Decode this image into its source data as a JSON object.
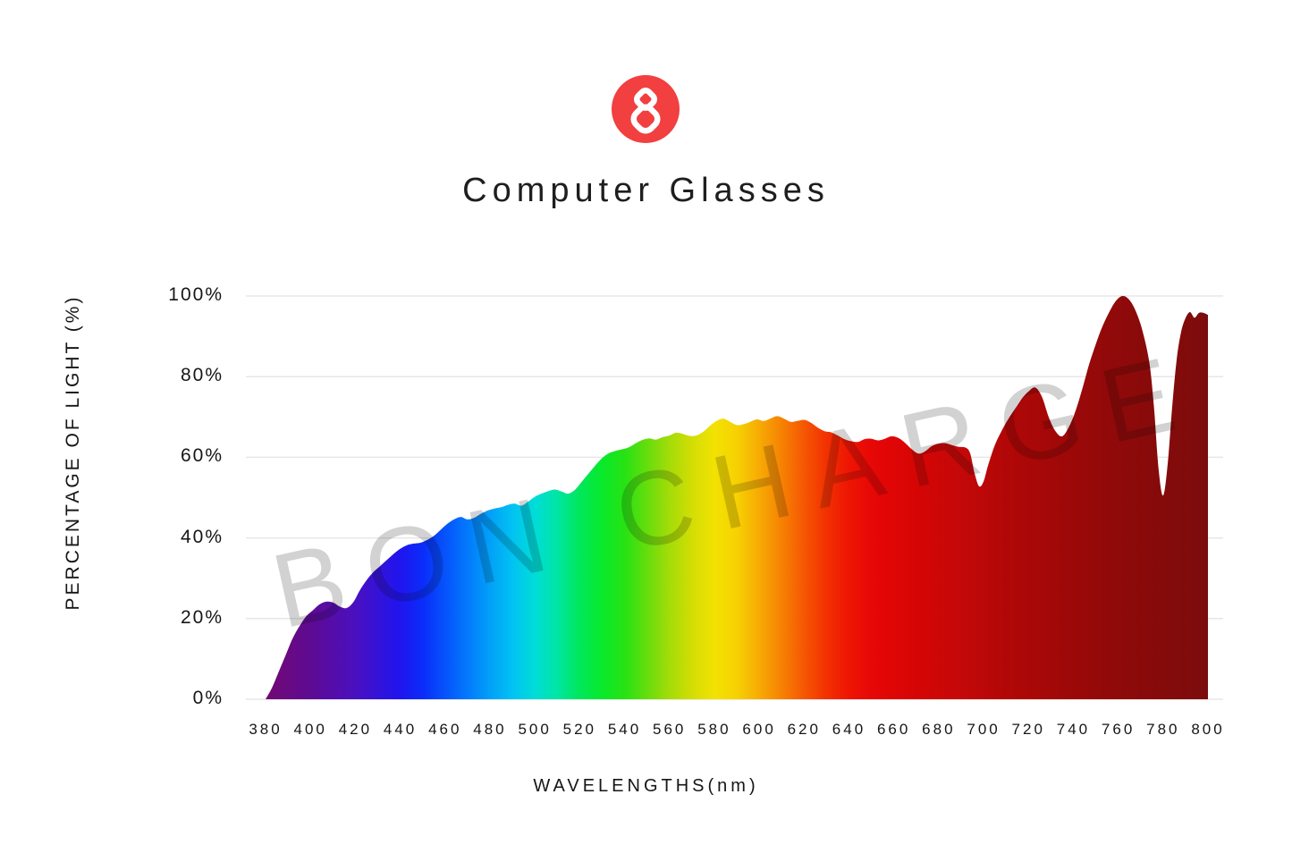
{
  "header": {
    "logo": {
      "bg_color": "#f23f3f",
      "glyph": "bon-charge-figure-8-knot",
      "glyph_color": "#ffffff"
    },
    "title": "Computer Glasses"
  },
  "chart_data": {
    "type": "area",
    "title": "Computer Glasses",
    "xlabel": "WAVELENGTHS(nm)",
    "ylabel": "PERCENTAGE OF LIGHT (%)",
    "watermark": "BON CHARGE",
    "xlim": [
      380,
      800
    ],
    "ylim": [
      0,
      100
    ],
    "grid": "horizontal",
    "grid_color": "#e7e7e7",
    "text_color": "#161616",
    "x_ticks": [
      380,
      400,
      420,
      440,
      460,
      480,
      500,
      520,
      540,
      560,
      580,
      600,
      620,
      640,
      660,
      680,
      700,
      720,
      740,
      760,
      780,
      800
    ],
    "y_ticks": [
      {
        "value": 0,
        "label": "0%"
      },
      {
        "value": 20,
        "label": "20%"
      },
      {
        "value": 40,
        "label": "40%"
      },
      {
        "value": 60,
        "label": "60%"
      },
      {
        "value": 80,
        "label": "80%"
      },
      {
        "value": 100,
        "label": "100%"
      }
    ],
    "series": [
      {
        "name": "computer-glasses-light-transmission-percent",
        "points": [
          [
            380,
            0
          ],
          [
            383,
            3
          ],
          [
            386,
            7
          ],
          [
            389,
            11
          ],
          [
            392,
            15
          ],
          [
            395,
            18
          ],
          [
            398,
            20.5
          ],
          [
            401,
            22
          ],
          [
            404,
            23.5
          ],
          [
            407,
            24.2
          ],
          [
            410,
            24
          ],
          [
            413,
            23
          ],
          [
            416,
            22.6
          ],
          [
            419,
            24
          ],
          [
            422,
            27
          ],
          [
            425,
            29.5
          ],
          [
            428,
            31.5
          ],
          [
            431,
            33
          ],
          [
            434,
            34.5
          ],
          [
            437,
            36
          ],
          [
            440,
            37.3
          ],
          [
            443,
            38.2
          ],
          [
            446,
            38.6
          ],
          [
            449,
            38.8
          ],
          [
            452,
            39.5
          ],
          [
            455,
            40.5
          ],
          [
            458,
            42
          ],
          [
            461,
            43.5
          ],
          [
            464,
            44.6
          ],
          [
            467,
            45.2
          ],
          [
            470,
            44.6
          ],
          [
            473,
            45
          ],
          [
            476,
            46
          ],
          [
            479,
            46.8
          ],
          [
            482,
            47.3
          ],
          [
            485,
            47.6
          ],
          [
            488,
            48.2
          ],
          [
            491,
            48.5
          ],
          [
            494,
            48
          ],
          [
            497,
            49
          ],
          [
            500,
            50.2
          ],
          [
            503,
            51
          ],
          [
            506,
            51.6
          ],
          [
            509,
            52
          ],
          [
            512,
            51.5
          ],
          [
            515,
            51
          ],
          [
            518,
            52
          ],
          [
            521,
            54
          ],
          [
            524,
            56
          ],
          [
            527,
            58
          ],
          [
            530,
            59.8
          ],
          [
            533,
            61
          ],
          [
            536,
            61.6
          ],
          [
            539,
            62
          ],
          [
            542,
            62.5
          ],
          [
            545,
            63.5
          ],
          [
            548,
            64.3
          ],
          [
            551,
            64.7
          ],
          [
            554,
            64.4
          ],
          [
            557,
            65
          ],
          [
            560,
            65.4
          ],
          [
            563,
            66.1
          ],
          [
            566,
            65.8
          ],
          [
            569,
            65.3
          ],
          [
            572,
            65.4
          ],
          [
            575,
            66.3
          ],
          [
            578,
            67.8
          ],
          [
            581,
            69
          ],
          [
            584,
            69.6
          ],
          [
            587,
            68.8
          ],
          [
            590,
            68
          ],
          [
            593,
            68.2
          ],
          [
            596,
            68.8
          ],
          [
            599,
            69.4
          ],
          [
            602,
            69
          ],
          [
            605,
            69.6
          ],
          [
            608,
            70.2
          ],
          [
            611,
            69.6
          ],
          [
            614,
            68.8
          ],
          [
            617,
            69
          ],
          [
            620,
            69.3
          ],
          [
            623,
            68.6
          ],
          [
            626,
            67.4
          ],
          [
            629,
            66.5
          ],
          [
            632,
            66.2
          ],
          [
            635,
            65.4
          ],
          [
            638,
            64.5
          ],
          [
            641,
            64
          ],
          [
            644,
            63.8
          ],
          [
            647,
            64.5
          ],
          [
            650,
            64.6
          ],
          [
            653,
            64.2
          ],
          [
            656,
            64.6
          ],
          [
            659,
            65.2
          ],
          [
            662,
            64.8
          ],
          [
            665,
            63.6
          ],
          [
            668,
            62
          ],
          [
            671,
            60.9
          ],
          [
            674,
            61.5
          ],
          [
            677,
            62.8
          ],
          [
            680,
            63.4
          ],
          [
            683,
            63.5
          ],
          [
            686,
            63
          ],
          [
            689,
            62.6
          ],
          [
            692,
            62.4
          ],
          [
            694,
            61
          ],
          [
            696,
            56
          ],
          [
            698,
            52.8
          ],
          [
            700,
            54
          ],
          [
            702,
            58
          ],
          [
            705,
            63
          ],
          [
            708,
            66.5
          ],
          [
            711,
            69.5
          ],
          [
            714,
            72
          ],
          [
            717,
            74.5
          ],
          [
            720,
            76.3
          ],
          [
            723,
            77.3
          ],
          [
            726,
            75
          ],
          [
            729,
            70
          ],
          [
            732,
            66.5
          ],
          [
            735,
            65.2
          ],
          [
            738,
            67.5
          ],
          [
            741,
            71.5
          ],
          [
            744,
            77
          ],
          [
            747,
            83
          ],
          [
            750,
            88
          ],
          [
            753,
            92.5
          ],
          [
            756,
            96
          ],
          [
            759,
            98.8
          ],
          [
            762,
            100
          ],
          [
            765,
            99
          ],
          [
            768,
            96
          ],
          [
            771,
            91
          ],
          [
            774,
            83
          ],
          [
            776,
            72
          ],
          [
            778,
            57
          ],
          [
            780,
            50.5
          ],
          [
            782,
            58
          ],
          [
            784,
            72
          ],
          [
            786,
            84
          ],
          [
            788,
            91
          ],
          [
            790,
            94.5
          ],
          [
            792,
            96
          ],
          [
            794,
            94.6
          ],
          [
            796,
            95.8
          ],
          [
            798,
            95.8
          ],
          [
            800,
            95.3
          ]
        ]
      }
    ],
    "spectrum_gradient": [
      {
        "nm": 380,
        "color": "#730973"
      },
      {
        "nm": 400,
        "color": "#5e0a92"
      },
      {
        "nm": 420,
        "color": "#4a10c0"
      },
      {
        "nm": 440,
        "color": "#1f15ee"
      },
      {
        "nm": 450,
        "color": "#0b2cfa"
      },
      {
        "nm": 460,
        "color": "#0653fb"
      },
      {
        "nm": 470,
        "color": "#0379fb"
      },
      {
        "nm": 480,
        "color": "#02a0f8"
      },
      {
        "nm": 490,
        "color": "#01c2f2"
      },
      {
        "nm": 500,
        "color": "#00dcd8"
      },
      {
        "nm": 510,
        "color": "#00e6a4"
      },
      {
        "nm": 520,
        "color": "#00e75c"
      },
      {
        "nm": 530,
        "color": "#09e92b"
      },
      {
        "nm": 540,
        "color": "#27e214"
      },
      {
        "nm": 550,
        "color": "#66dd0d"
      },
      {
        "nm": 560,
        "color": "#a4dc08"
      },
      {
        "nm": 570,
        "color": "#d3dd05"
      },
      {
        "nm": 580,
        "color": "#f2e202"
      },
      {
        "nm": 590,
        "color": "#f7d103"
      },
      {
        "nm": 600,
        "color": "#f7ab04"
      },
      {
        "nm": 610,
        "color": "#f68203"
      },
      {
        "nm": 620,
        "color": "#f55703"
      },
      {
        "nm": 630,
        "color": "#f23102"
      },
      {
        "nm": 640,
        "color": "#ee1503"
      },
      {
        "nm": 650,
        "color": "#e70707"
      },
      {
        "nm": 670,
        "color": "#d60505"
      },
      {
        "nm": 690,
        "color": "#c40808"
      },
      {
        "nm": 710,
        "color": "#b20707"
      },
      {
        "nm": 730,
        "color": "#a30808"
      },
      {
        "nm": 750,
        "color": "#950909"
      },
      {
        "nm": 770,
        "color": "#8a0a0a"
      },
      {
        "nm": 800,
        "color": "#7c0c0c"
      }
    ]
  }
}
